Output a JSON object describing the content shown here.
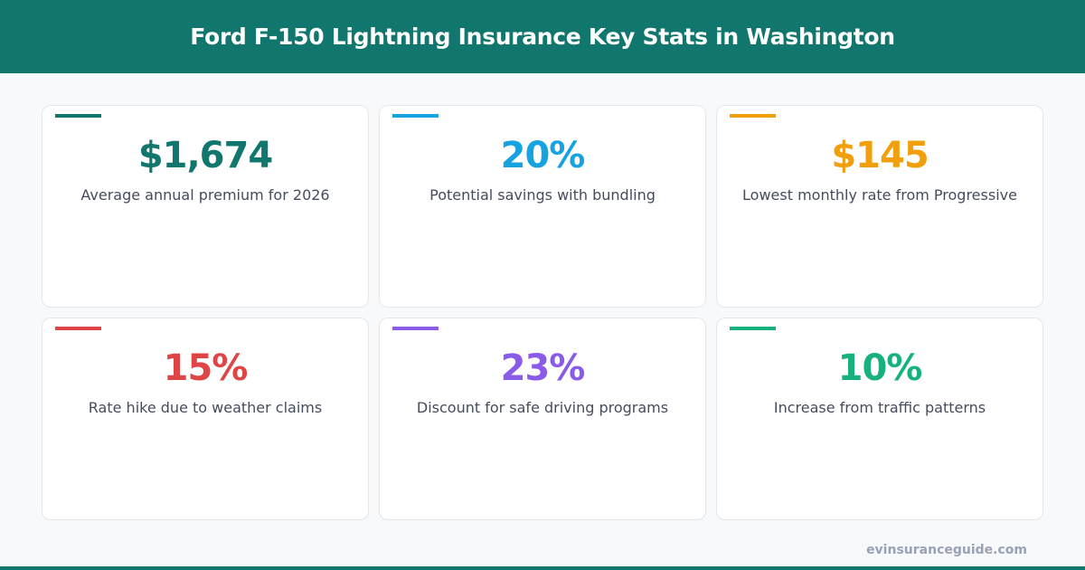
{
  "header": {
    "title": "Ford F-150 Lightning Insurance Key Stats in Washington"
  },
  "colors": {
    "brand": "#11766e"
  },
  "stats": [
    {
      "value": "$1,674",
      "label": "Average annual premium for 2026",
      "color": "#11766e"
    },
    {
      "value": "20%",
      "label": "Potential savings with bundling",
      "color": "#17a2e0"
    },
    {
      "value": "$145",
      "label": "Lowest monthly rate from Progressive",
      "color": "#f29f0d"
    },
    {
      "value": "15%",
      "label": "Rate hike due to weather claims",
      "color": "#e04545"
    },
    {
      "value": "23%",
      "label": "Discount for safe driving programs",
      "color": "#8a5ae8"
    },
    {
      "value": "10%",
      "label": "Increase from traffic patterns",
      "color": "#17b07f"
    }
  ],
  "footer": {
    "site": "evinsuranceguide.com"
  }
}
